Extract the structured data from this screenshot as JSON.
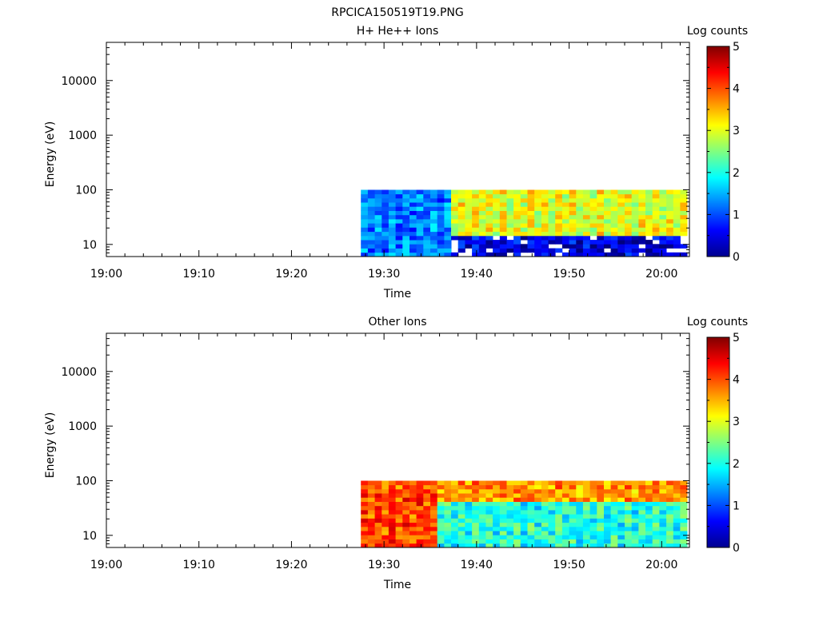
{
  "file_title": "RPCICA150519T19.PNG",
  "chart_data": [
    {
      "type": "heatmap",
      "title": "H+ He++ Ions",
      "xlabel": "Time",
      "ylabel": "Energy (eV)",
      "colorbar_label": "Log counts",
      "colorbar_ticks": [
        "0",
        "1",
        "2",
        "3",
        "4",
        "5"
      ],
      "colorbar_range": [
        0,
        5
      ],
      "colormap": "jet",
      "x_ticks": [
        "19:00",
        "19:10",
        "19:20",
        "19:30",
        "19:40",
        "19:50",
        "20:00"
      ],
      "x_range": [
        "19:00",
        "20:03"
      ],
      "y_scale": "log",
      "y_ticks": [
        "10",
        "100",
        "1000",
        "10000"
      ],
      "y_range": [
        6,
        50000
      ],
      "data_start": "19:27.5",
      "data_end": "20:02.8",
      "energy_range_ev": [
        6,
        100
      ],
      "description_levels": [
        {
          "time_from": "19:27.5",
          "time_to": "19:37",
          "energy_from": 6,
          "energy_to": 100,
          "log_counts_typical": 1.2
        },
        {
          "time_from": "19:37",
          "time_to": "20:02.8",
          "energy_from": 14,
          "energy_to": 100,
          "log_counts_typical": 3.0
        },
        {
          "time_from": "19:37",
          "time_to": "20:02.8",
          "energy_from": 6,
          "energy_to": 14,
          "log_counts_typical": 0.4
        }
      ]
    },
    {
      "type": "heatmap",
      "title": "Other Ions",
      "xlabel": "Time",
      "ylabel": "Energy (eV)",
      "colorbar_label": "Log counts",
      "colorbar_ticks": [
        "0",
        "1",
        "2",
        "3",
        "4",
        "5"
      ],
      "colorbar_range": [
        0,
        5
      ],
      "colormap": "jet",
      "x_ticks": [
        "19:00",
        "19:10",
        "19:20",
        "19:30",
        "19:40",
        "19:50",
        "20:00"
      ],
      "x_range": [
        "19:00",
        "20:03"
      ],
      "y_scale": "log",
      "y_ticks": [
        "10",
        "100",
        "1000",
        "10000"
      ],
      "y_range": [
        6,
        50000
      ],
      "data_start": "19:27.5",
      "data_end": "20:02.8",
      "energy_range_ev": [
        6,
        100
      ],
      "description_levels": [
        {
          "time_from": "19:27.5",
          "time_to": "19:36",
          "energy_from": 6,
          "energy_to": 100,
          "log_counts_typical": 4.0
        },
        {
          "time_from": "19:36",
          "time_to": "20:02.8",
          "energy_from": 40,
          "energy_to": 100,
          "log_counts_typical": 3.6
        },
        {
          "time_from": "19:36",
          "time_to": "20:02.8",
          "energy_from": 6,
          "energy_to": 40,
          "log_counts_typical": 2.0
        }
      ]
    }
  ]
}
